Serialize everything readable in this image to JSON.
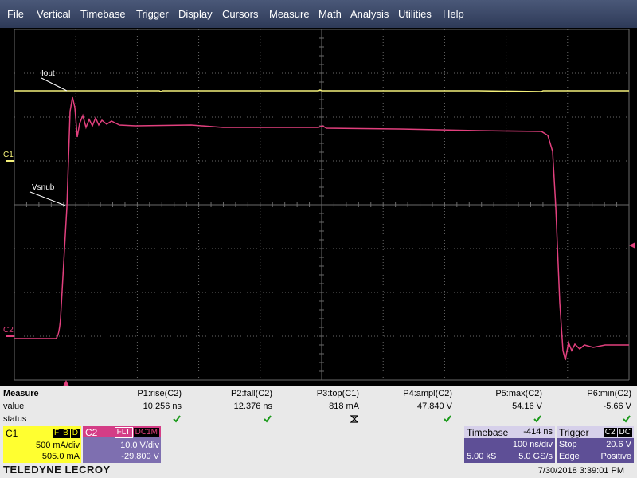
{
  "menu": [
    "File",
    "Vertical",
    "Timebase",
    "Trigger",
    "Display",
    "Cursors",
    "Measure",
    "Math",
    "Analysis",
    "Utilities",
    "Help"
  ],
  "display": {
    "iout_label": "Iout",
    "vsnub_label": "Vsnub",
    "c1_marker": "C1",
    "c2_marker": "C2"
  },
  "measure": {
    "row_labels": [
      "Measure",
      "value",
      "status"
    ],
    "columns": [
      {
        "name": "P1:rise(C2)",
        "value": "10.256 ns"
      },
      {
        "name": "P2:fall(C2)",
        "value": "12.376 ns"
      },
      {
        "name": "P3:top(C1)",
        "value": "818 mA"
      },
      {
        "name": "P4:ampl(C2)",
        "value": "47.840 V"
      },
      {
        "name": "P5:max(C2)",
        "value": "54.16 V"
      },
      {
        "name": "P6:min(C2)",
        "value": "-5.66 V"
      }
    ]
  },
  "channels": [
    {
      "name": "C1",
      "badges": [
        "F",
        "B",
        "D"
      ],
      "scale": "500 mA/div",
      "offset": "505.0 mA"
    },
    {
      "name": "C2",
      "badges": [
        "FLT",
        "DC1M"
      ],
      "scale": "10.0 V/div",
      "offset": "-29.800 V"
    }
  ],
  "timebase": {
    "title": "Timebase",
    "delay": "-414 ns",
    "scale": "100 ns/div",
    "samples": "5.00 kS",
    "rate": "5.0 GS/s"
  },
  "trigger": {
    "title": "Trigger",
    "source": "C2",
    "coupling": "DC",
    "mode": "Stop",
    "level": "20.6 V",
    "type": "Edge",
    "slope": "Positive"
  },
  "footer": {
    "brand": "TELEDYNE LECROY",
    "timestamp": "7/30/2018 3:39:01 PM"
  }
}
